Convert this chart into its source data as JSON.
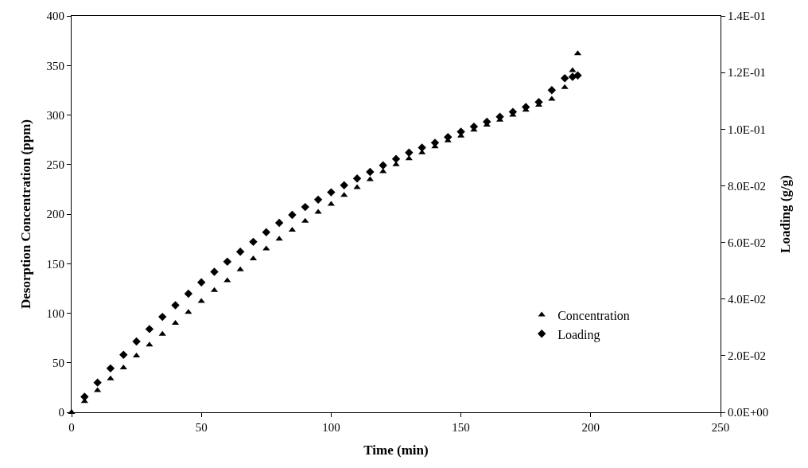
{
  "chart_data": {
    "type": "scatter",
    "xlabel": "Time (min)",
    "ylabel": "Desorption Concentration (ppm)",
    "y2label": "Loading (g/g)",
    "x": [
      0,
      5,
      10,
      15,
      20,
      25,
      30,
      35,
      40,
      45,
      50,
      55,
      60,
      65,
      70,
      75,
      80,
      85,
      90,
      95,
      100,
      105,
      110,
      115,
      120,
      125,
      130,
      135,
      140,
      145,
      150,
      155,
      160,
      165,
      170,
      175,
      180,
      185,
      190,
      193,
      195
    ],
    "series": [
      {
        "name": "Concentration",
        "color": "#000000",
        "marker": "triangle",
        "values": [
          0,
          11,
          22,
          34,
          45,
          57,
          68,
          79,
          90,
          101,
          112,
          123,
          133,
          144,
          155,
          165,
          175,
          184,
          193,
          202,
          210,
          219,
          227,
          235,
          243,
          250,
          256,
          262,
          268,
          274,
          279,
          285,
          290,
          295,
          300,
          305,
          310,
          316,
          328,
          345,
          362
        ]
      },
      {
        "name": "Loading",
        "color": "#000000",
        "marker": "diamond",
        "axis": "y2",
        "x": [
          5,
          10,
          15,
          20,
          25,
          30,
          35,
          40,
          45,
          50,
          55,
          60,
          65,
          70,
          75,
          80,
          85,
          90,
          95,
          100,
          105,
          110,
          115,
          120,
          125,
          130,
          135,
          140,
          145,
          150,
          155,
          160,
          165,
          170,
          175,
          180,
          185,
          190,
          193,
          195
        ],
        "values": [
          0.0055,
          0.0105,
          0.0155,
          0.0203,
          0.025,
          0.0294,
          0.0337,
          0.0378,
          0.0419,
          0.0459,
          0.0496,
          0.0532,
          0.0567,
          0.0602,
          0.0636,
          0.0669,
          0.0697,
          0.0725,
          0.0751,
          0.0777,
          0.0802,
          0.0826,
          0.0849,
          0.0872,
          0.0895,
          0.0917,
          0.0935,
          0.0952,
          0.0972,
          0.0991,
          0.1009,
          0.1026,
          0.1044,
          0.1061,
          0.1078,
          0.1096,
          0.1138,
          0.118,
          0.1185,
          0.119
        ]
      }
    ],
    "xlim": [
      0,
      250
    ],
    "xticks": [
      0,
      50,
      100,
      150,
      200,
      250
    ],
    "ylim": [
      0,
      400
    ],
    "yticks": [
      0,
      50,
      100,
      150,
      200,
      250,
      300,
      350,
      400
    ],
    "y2lim": [
      0,
      0.14
    ],
    "y2ticks": [
      {
        "value": 0,
        "label": "0.0E+00"
      },
      {
        "value": 0.02,
        "label": "2.0E-02"
      },
      {
        "value": 0.04,
        "label": "4.0E-02"
      },
      {
        "value": 0.06,
        "label": "6.0E-02"
      },
      {
        "value": 0.08,
        "label": "8.0E-02"
      },
      {
        "value": 0.1,
        "label": "1.0E-01"
      },
      {
        "value": 0.12,
        "label": "1.2E-01"
      },
      {
        "value": 0.14,
        "label": "1.4E-01"
      }
    ],
    "legend": "bottom right"
  }
}
